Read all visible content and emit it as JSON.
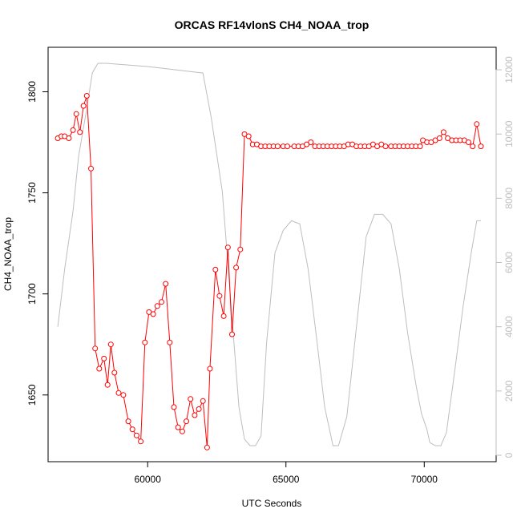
{
  "chart_data": {
    "type": "line",
    "title": "ORCAS RF14vlonS CH4_NOAA_trop",
    "xlabel": "UTC Seconds",
    "ylabel": "CH4_NOAA_trop",
    "ylabel_right": "",
    "xlim": [
      56400,
      72600
    ],
    "ylim": [
      1617,
      1822
    ],
    "ylim_right": [
      -200,
      12700
    ],
    "x_ticks": [
      60000,
      65000,
      70000
    ],
    "y_ticks": [
      1650,
      1700,
      1750,
      1800
    ],
    "y_ticks_right": [
      0,
      2000,
      4000,
      6000,
      8000,
      10000,
      12000
    ],
    "grid": false,
    "colors": {
      "ch4": "#ff0000",
      "altitude": "#bebebe",
      "axis": "#000000"
    },
    "series": [
      {
        "axis": "left",
        "style": "line+points",
        "x": [
          56750,
          56880,
          57000,
          57150,
          57300,
          57420,
          57550,
          57680,
          57800,
          57950,
          58100,
          58250,
          58420,
          58550,
          58670,
          58800,
          58950,
          59120,
          59300,
          59450,
          59600,
          59750,
          59900,
          60050,
          60200,
          60350,
          60500,
          60650,
          60800,
          60950,
          61100,
          61250,
          61400,
          61550,
          61700,
          61850,
          62000,
          62150,
          62250,
          62450,
          62600,
          62750,
          62900,
          63050,
          63200,
          63350,
          63500,
          63650,
          63800,
          63950,
          64100,
          64250,
          64400,
          64550,
          64700,
          64900,
          65050,
          65300,
          65450,
          65600,
          65750,
          65900,
          66050,
          66200,
          66350,
          66500,
          66650,
          66800,
          66950,
          67100,
          67250,
          67400,
          67550,
          67700,
          67850,
          68000,
          68150,
          68300,
          68450,
          68600,
          68800,
          68950,
          69100,
          69250,
          69400,
          69550,
          69700,
          69850,
          69950,
          70100,
          70250,
          70400,
          70550,
          70700,
          70850,
          71000,
          71150,
          71300,
          71450,
          71600,
          71750,
          71900,
          72050
        ],
        "y": [
          1777,
          1778,
          1778,
          1777,
          1781,
          1789,
          1780,
          1793,
          1798,
          1762,
          1673,
          1663,
          1668,
          1655,
          1675,
          1661,
          1651,
          1650,
          1637,
          1633,
          1630,
          1627,
          1676,
          1691,
          1690,
          1694,
          1696,
          1705,
          1676,
          1644,
          1634,
          1632,
          1637,
          1648,
          1640,
          1643,
          1647,
          1624,
          1663,
          1712,
          1699,
          1689,
          1723,
          1680,
          1713,
          1722,
          1779,
          1778,
          1774,
          1774,
          1773,
          1773,
          1773,
          1773,
          1773,
          1773,
          1773,
          1773,
          1773,
          1773,
          1774,
          1775,
          1773,
          1773,
          1773,
          1773,
          1773,
          1773,
          1773,
          1773,
          1774,
          1774,
          1773,
          1773,
          1773,
          1773,
          1774,
          1773,
          1774,
          1773,
          1773,
          1773,
          1773,
          1773,
          1773,
          1773,
          1773,
          1773,
          1776,
          1775,
          1775,
          1776,
          1777,
          1780,
          1777,
          1776,
          1776,
          1776,
          1776,
          1775,
          1773,
          1784,
          1773
        ]
      },
      {
        "axis": "right",
        "style": "line",
        "x": [
          56750,
          57000,
          57300,
          57500,
          57800,
          58000,
          58200,
          58500,
          60000,
          62000,
          62300,
          62700,
          63300,
          63500,
          63700,
          63900,
          64100,
          64300,
          64600,
          64900,
          65200,
          65500,
          65800,
          66100,
          66400,
          66700,
          66900,
          67200,
          67500,
          67900,
          68200,
          68500,
          68800,
          69100,
          69400,
          69700,
          69900,
          70100,
          70200,
          70400,
          70600,
          70800,
          71100,
          71400,
          71700,
          71900,
          72050
        ],
        "y": [
          4000,
          5800,
          7600,
          9300,
          10800,
          11900,
          12200,
          12200,
          12100,
          11900,
          10500,
          8200,
          1500,
          500,
          300,
          300,
          600,
          3500,
          6300,
          7000,
          7300,
          7200,
          5800,
          3700,
          1500,
          300,
          300,
          1200,
          3600,
          6800,
          7500,
          7500,
          7200,
          5800,
          3800,
          2200,
          1300,
          800,
          400,
          300,
          300,
          700,
          2600,
          4600,
          6300,
          7300,
          7300
        ]
      }
    ]
  }
}
